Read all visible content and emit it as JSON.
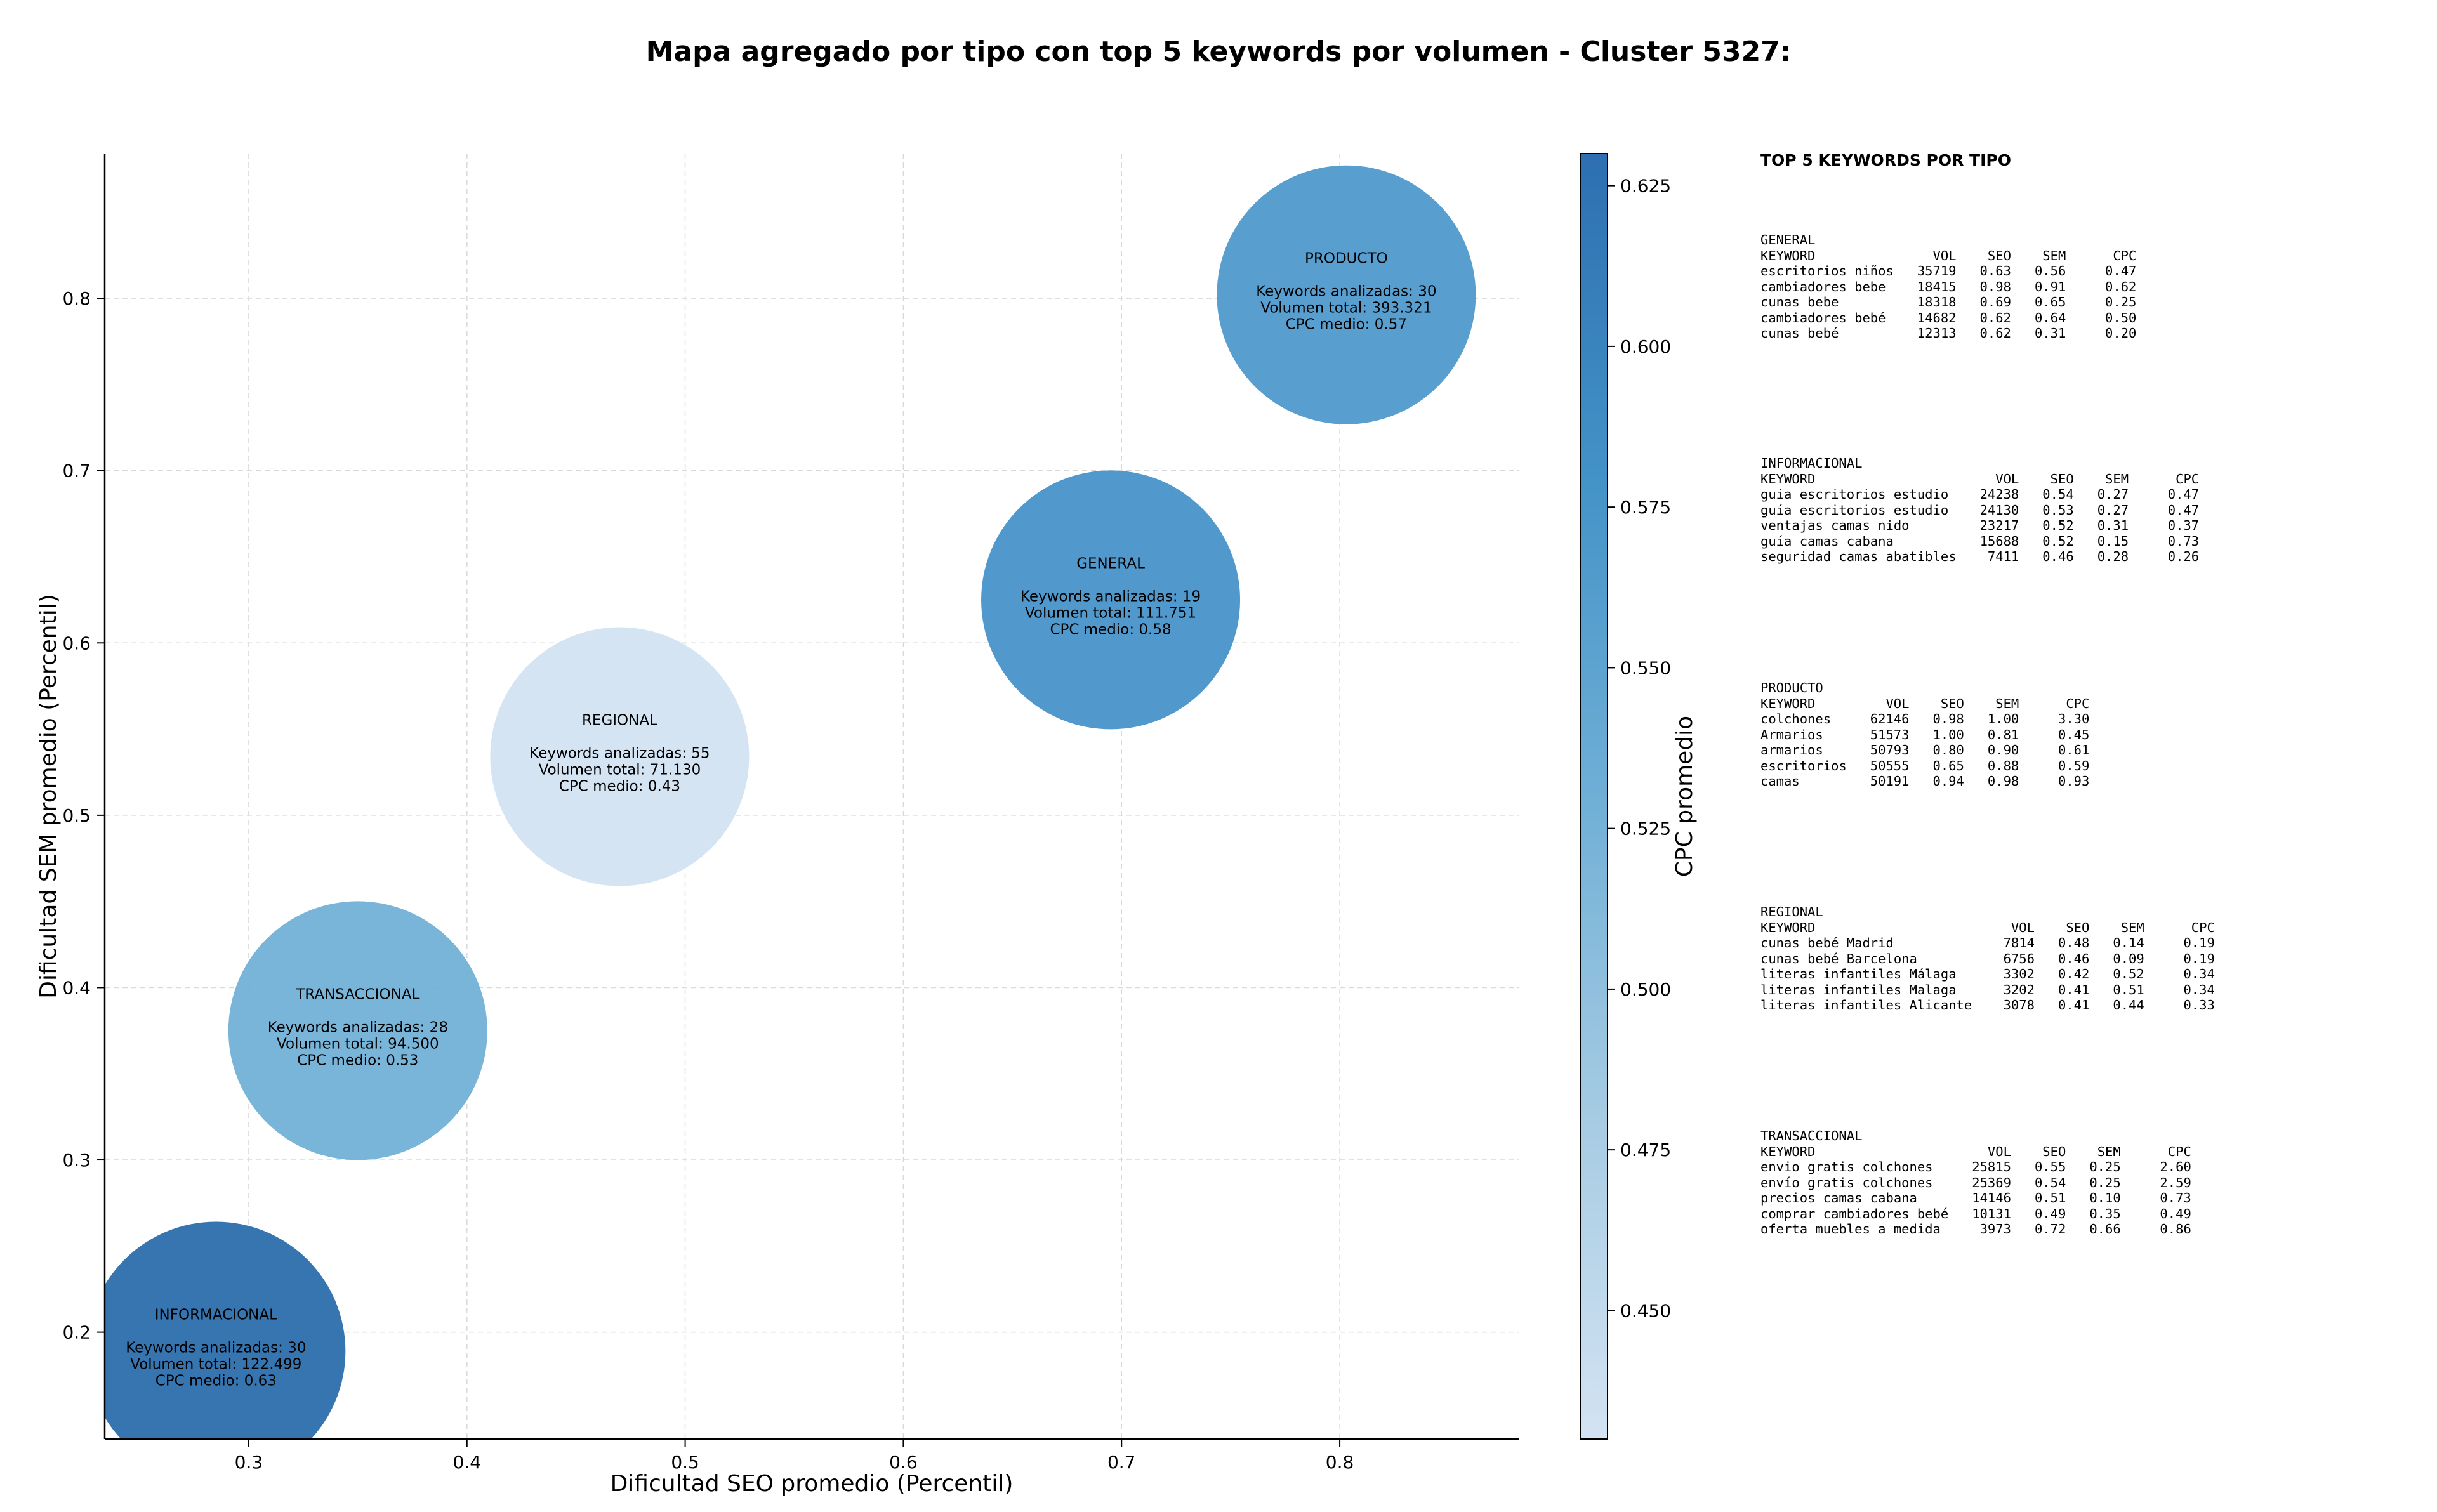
{
  "chart_data": {
    "type": "scatter",
    "title": "Mapa agregado por tipo con top 5 keywords por volumen - Cluster 5327:",
    "xlabel": "Dificultad SEO promedio (Percentil)",
    "ylabel": "Dificultad SEM promedio (Percentil)",
    "xlim": [
      0.234,
      0.882
    ],
    "ylim": [
      0.138,
      0.884
    ],
    "xticks": [
      "0.3",
      "0.4",
      "0.5",
      "0.6",
      "0.7",
      "0.8"
    ],
    "yticks": [
      "0.2",
      "0.3",
      "0.4",
      "0.5",
      "0.6",
      "0.7",
      "0.8"
    ],
    "grid": true,
    "colorbar": {
      "label": "CPC promedio",
      "range": [
        0.43,
        0.63
      ],
      "ticks": [
        "0.450",
        "0.475",
        "0.500",
        "0.525",
        "0.550",
        "0.575",
        "0.600",
        "0.625"
      ],
      "colors": [
        "#d3e3f2",
        "#a6cbe3",
        "#6fafd6",
        "#4392c7",
        "#2d6fb1"
      ]
    },
    "points": [
      {
        "name": "PRODUCTO",
        "x": 0.803,
        "y": 0.802,
        "cpc": 0.57,
        "color": "#4f99cc",
        "lines": [
          "Keywords analizadas: 30",
          "Volumen total: 393.321",
          "CPC medio: 0.57"
        ]
      },
      {
        "name": "GENERAL",
        "x": 0.695,
        "y": 0.625,
        "cpc": 0.58,
        "color": "#4893c9",
        "lines": [
          "Keywords analizadas: 19",
          "Volumen total: 111.751",
          "CPC medio: 0.58"
        ]
      },
      {
        "name": "REGIONAL",
        "x": 0.47,
        "y": 0.534,
        "cpc": 0.43,
        "color": "#d2e3f2",
        "lines": [
          "Keywords analizadas: 55",
          "Volumen total: 71.130",
          "CPC medio: 0.43"
        ]
      },
      {
        "name": "TRANSACCIONAL",
        "x": 0.35,
        "y": 0.375,
        "cpc": 0.53,
        "color": "#72b1d7",
        "lines": [
          "Keywords analizadas: 28",
          "Volumen total: 94.500",
          "CPC medio: 0.53"
        ]
      },
      {
        "name": "INFORMACIONAL",
        "x": 0.285,
        "y": 0.189,
        "cpc": 0.63,
        "color": "#2c6ead",
        "lines": [
          "Keywords analizadas: 30",
          "Volumen total: 122.499",
          "CPC medio: 0.63"
        ]
      }
    ]
  },
  "keywords_panel": {
    "title": "TOP 5 KEYWORDS POR TIPO",
    "headers": [
      "KEYWORD",
      "VOL",
      "SEO",
      "SEM",
      "CPC"
    ],
    "groups": [
      {
        "type": "GENERAL",
        "rows": [
          [
            "escritorios niños",
            "35719",
            "0.63",
            "0.56",
            "0.47"
          ],
          [
            "cambiadores bebe",
            "18415",
            "0.98",
            "0.91",
            "0.62"
          ],
          [
            "cunas bebe",
            "18318",
            "0.69",
            "0.65",
            "0.25"
          ],
          [
            "cambiadores bebé",
            "14682",
            "0.62",
            "0.64",
            "0.50"
          ],
          [
            "cunas bebé",
            "12313",
            "0.62",
            "0.31",
            "0.20"
          ]
        ]
      },
      {
        "type": "INFORMACIONAL",
        "rows": [
          [
            "guia escritorios estudio",
            "24238",
            "0.54",
            "0.27",
            "0.47"
          ],
          [
            "guía escritorios estudio",
            "24130",
            "0.53",
            "0.27",
            "0.47"
          ],
          [
            "ventajas camas nido",
            "23217",
            "0.52",
            "0.31",
            "0.37"
          ],
          [
            "guía camas cabana",
            "15688",
            "0.52",
            "0.15",
            "0.73"
          ],
          [
            "seguridad camas abatibles",
            "7411",
            "0.46",
            "0.28",
            "0.26"
          ]
        ]
      },
      {
        "type": "PRODUCTO",
        "rows": [
          [
            "colchones",
            "62146",
            "0.98",
            "1.00",
            "3.30"
          ],
          [
            "Armarios",
            "51573",
            "1.00",
            "0.81",
            "0.45"
          ],
          [
            "armarios",
            "50793",
            "0.80",
            "0.90",
            "0.61"
          ],
          [
            "escritorios",
            "50555",
            "0.65",
            "0.88",
            "0.59"
          ],
          [
            "camas",
            "50191",
            "0.94",
            "0.98",
            "0.93"
          ]
        ]
      },
      {
        "type": "REGIONAL",
        "rows": [
          [
            "cunas bebé Madrid",
            "7814",
            "0.48",
            "0.14",
            "0.19"
          ],
          [
            "cunas bebé Barcelona",
            "6756",
            "0.46",
            "0.09",
            "0.19"
          ],
          [
            "literas infantiles Málaga",
            "3302",
            "0.42",
            "0.52",
            "0.34"
          ],
          [
            "literas infantiles Malaga",
            "3202",
            "0.41",
            "0.51",
            "0.34"
          ],
          [
            "literas infantiles Alicante",
            "3078",
            "0.41",
            "0.44",
            "0.33"
          ]
        ]
      },
      {
        "type": "TRANSACCIONAL",
        "rows": [
          [
            "envio gratis colchones",
            "25815",
            "0.55",
            "0.25",
            "2.60"
          ],
          [
            "envío gratis colchones",
            "25369",
            "0.54",
            "0.25",
            "2.59"
          ],
          [
            "precios camas cabana",
            "14146",
            "0.51",
            "0.10",
            "0.73"
          ],
          [
            "comprar cambiadores bebé",
            "10131",
            "0.49",
            "0.35",
            "0.49"
          ],
          [
            "oferta muebles a medida",
            "3973",
            "0.72",
            "0.66",
            "0.86"
          ]
        ]
      }
    ]
  }
}
